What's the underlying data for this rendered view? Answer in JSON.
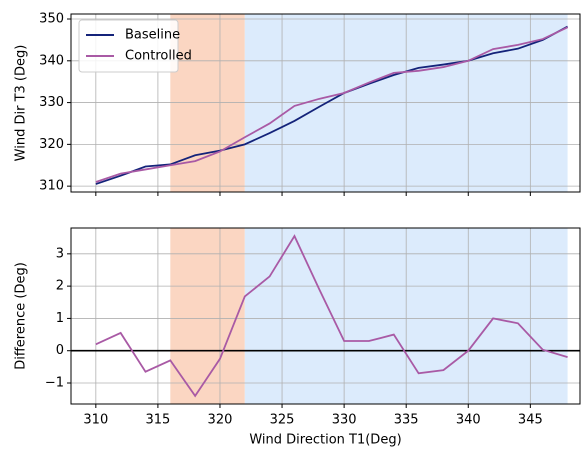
{
  "chart_data": [
    {
      "type": "line",
      "ylabel": "Wind Dir T3 (Deg)",
      "x": [
        310,
        312,
        314,
        316,
        318,
        320,
        322,
        324,
        326,
        328,
        330,
        332,
        334,
        336,
        338,
        340,
        342,
        344,
        346,
        348
      ],
      "series": [
        {
          "name": "Baseline",
          "color": "#14237a",
          "values": [
            310.5,
            312.5,
            314.7,
            315.2,
            317.4,
            318.5,
            320,
            322.7,
            325.6,
            329,
            332.3,
            334.5,
            336.6,
            338.3,
            339.1,
            340,
            341.8,
            342.9,
            345,
            348.2
          ]
        },
        {
          "name": "Controlled",
          "color": "#a95aa5",
          "values": [
            311,
            313,
            314,
            315,
            316,
            318.3,
            321.7,
            325,
            329.2,
            330.9,
            332.3,
            334.8,
            337.1,
            337.6,
            338.5,
            340,
            342.8,
            343.8,
            345.2,
            348
          ]
        }
      ],
      "xlim": [
        308,
        349
      ],
      "ylim": [
        308.6,
        351.2
      ],
      "xticks": [
        310,
        315,
        320,
        325,
        330,
        335,
        340,
        345
      ],
      "yticks": [
        310,
        320,
        330,
        340,
        350
      ],
      "show_xtick_labels": false,
      "spans": [
        {
          "start": 316,
          "end": 322,
          "color": "#fbd6c2"
        },
        {
          "start": 322,
          "end": 348,
          "color": "#dcebfc"
        }
      ],
      "grid": true,
      "legend": "upper left"
    },
    {
      "type": "line",
      "xlabel": "Wind Direction T1(Deg)",
      "ylabel": "Difference (Deg)",
      "x": [
        310,
        312,
        314,
        316,
        318,
        320,
        322,
        324,
        326,
        328,
        330,
        332,
        334,
        336,
        338,
        340,
        342,
        344,
        346,
        348
      ],
      "series": [
        {
          "color": "#a95aa5",
          "values": [
            0.2,
            0.55,
            -0.65,
            -0.3,
            -1.4,
            -0.25,
            1.68,
            2.3,
            3.55,
            1.9,
            0.3,
            0.3,
            0.5,
            -0.7,
            -0.6,
            0,
            1.0,
            0.85,
            0.03,
            -0.2
          ]
        }
      ],
      "xlim": [
        308,
        349
      ],
      "ylim": [
        -1.65,
        3.8
      ],
      "xticks": [
        310,
        315,
        320,
        325,
        330,
        335,
        340,
        345
      ],
      "yticks": [
        {
          "value": -1,
          "label": "−1"
        },
        0,
        1,
        2,
        3
      ],
      "show_xtick_labels": true,
      "spans": [
        {
          "start": 316,
          "end": 322,
          "color": "#fbd6c2"
        },
        {
          "start": 322,
          "end": 348,
          "color": "#dcebfc"
        }
      ],
      "hline": 0,
      "grid": true
    }
  ]
}
